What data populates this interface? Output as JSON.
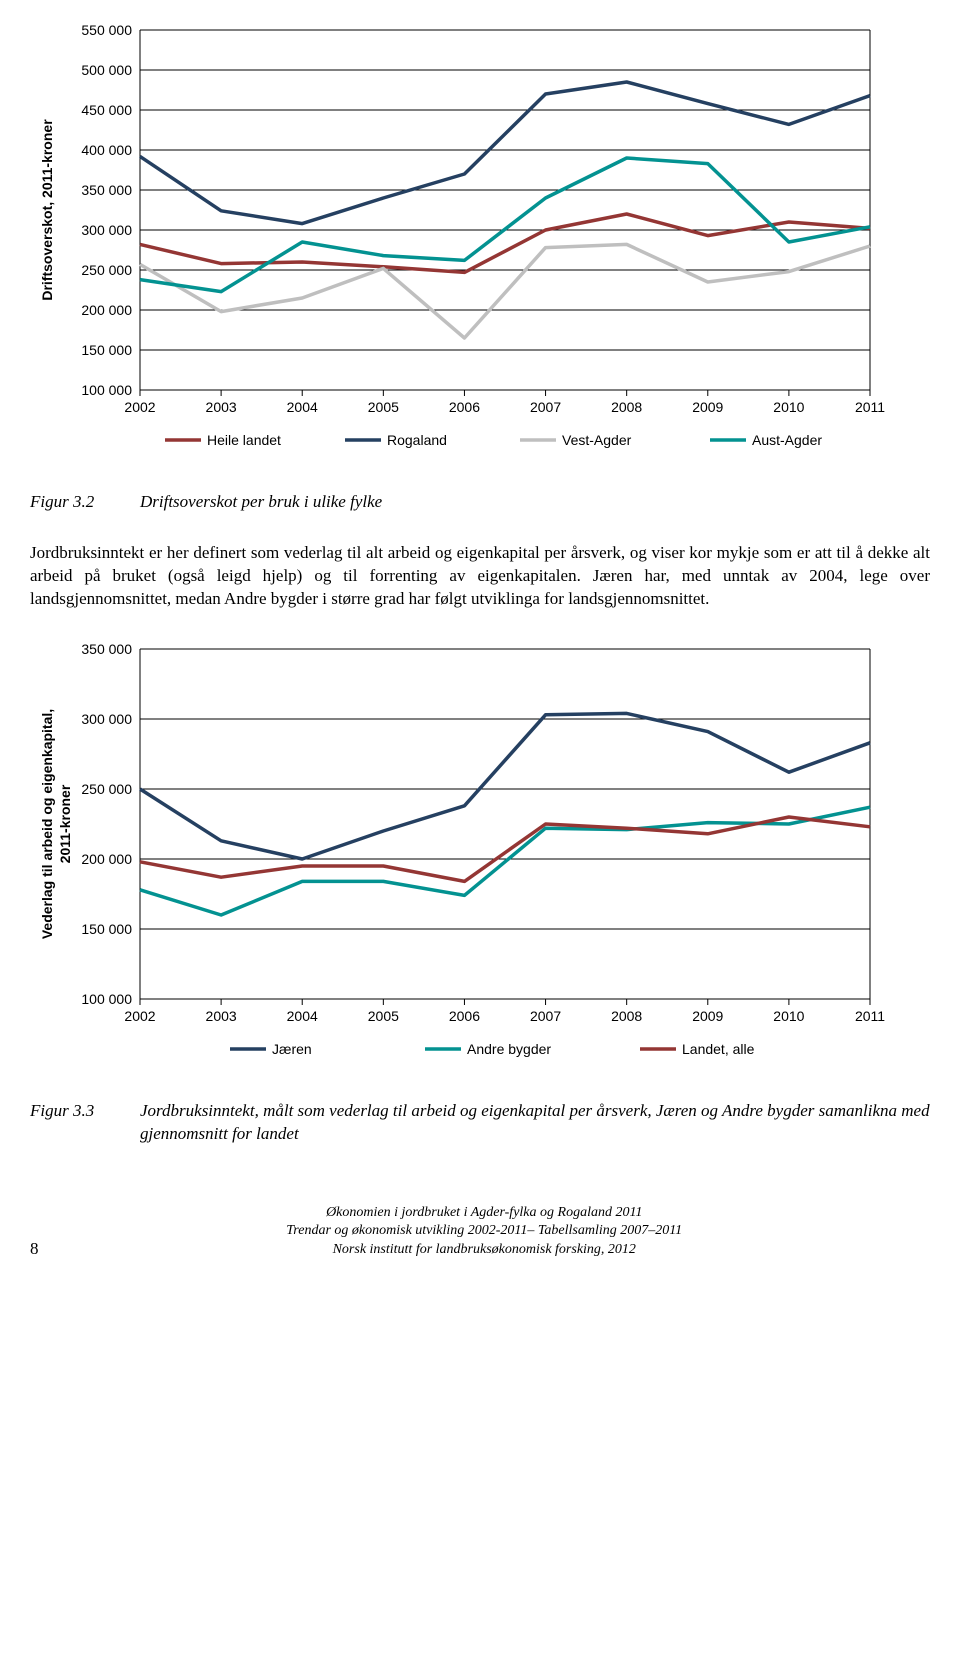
{
  "chart1": {
    "type": "line",
    "ylabel": "Driftsoverskot, 2011-kroner",
    "ylabel_fontsize": 14,
    "xcategories": [
      "2002",
      "2003",
      "2004",
      "2005",
      "2006",
      "2007",
      "2008",
      "2009",
      "2010",
      "2011"
    ],
    "ylim": [
      100000,
      550000
    ],
    "ytick_step": 50000,
    "yticklabels": [
      "100 000",
      "150 000",
      "200 000",
      "250 000",
      "300 000",
      "350 000",
      "400 000",
      "450 000",
      "500 000",
      "550 000"
    ],
    "grid_color": "#000000",
    "background_color": "#ffffff",
    "line_width": 3.5,
    "axis_fontsize": 14,
    "legend_fontsize": 14,
    "series": [
      {
        "name": "Heile landet",
        "color": "#943634",
        "values": [
          282000,
          258000,
          260000,
          254000,
          247000,
          300000,
          320000,
          293000,
          310000,
          302000
        ]
      },
      {
        "name": "Rogaland",
        "color": "#254061",
        "values": [
          392000,
          324000,
          308000,
          340000,
          370000,
          470000,
          485000,
          458000,
          432000,
          468000
        ]
      },
      {
        "name": "Vest-Agder",
        "color": "#bfbfbf",
        "values": [
          257000,
          198000,
          215000,
          252000,
          165000,
          278000,
          282000,
          235000,
          248000,
          280000
        ]
      },
      {
        "name": "Aust-Agder",
        "color": "#039291",
        "values": [
          238000,
          223000,
          285000,
          268000,
          262000,
          340000,
          390000,
          383000,
          285000,
          304000
        ]
      }
    ]
  },
  "figcap1": {
    "label": "Figur 3.2",
    "text": "Driftsoverskot per bruk i ulike fylke"
  },
  "paragraph": "Jordbruksinntekt er her definert som vederlag til alt arbeid og eigenkapital per årsverk, og viser kor mykje som er att til å dekke alt arbeid på bruket (også leigd hjelp) og til forrenting av eigenkapitalen. Jæren har, med unntak av 2004, lege over landsgjennomsnittet, medan Andre bygder i større grad har følgt utviklinga for landsgjennomsnittet.",
  "chart2": {
    "type": "line",
    "ylabel": "Vederlag til arbeid og eigenkapital,\n2011-kroner",
    "ylabel_fontsize": 14,
    "xcategories": [
      "2002",
      "2003",
      "2004",
      "2005",
      "2006",
      "2007",
      "2008",
      "2009",
      "2010",
      "2011"
    ],
    "ylim": [
      100000,
      350000
    ],
    "ytick_step": 50000,
    "yticklabels": [
      "100 000",
      "150 000",
      "200 000",
      "250 000",
      "300 000",
      "350 000"
    ],
    "grid_color": "#000000",
    "background_color": "#ffffff",
    "line_width": 3.5,
    "axis_fontsize": 14,
    "legend_fontsize": 14,
    "series": [
      {
        "name": "Jæren",
        "color": "#254061",
        "values": [
          250000,
          213000,
          200000,
          220000,
          238000,
          303000,
          304000,
          291000,
          262000,
          283000
        ]
      },
      {
        "name": "Andre bygder",
        "color": "#039291",
        "values": [
          178000,
          160000,
          184000,
          184000,
          174000,
          222000,
          221000,
          226000,
          225000,
          237000
        ]
      },
      {
        "name": "Landet, alle",
        "color": "#943634",
        "values": [
          198000,
          187000,
          195000,
          195000,
          184000,
          225000,
          222000,
          218000,
          230000,
          223000
        ]
      }
    ]
  },
  "figcap2": {
    "label": "Figur 3.3",
    "text": "Jordbruksinntekt, målt som vederlag til arbeid og eigenkapital per årsverk, Jæren og Andre bygder samanlikna med gjennomsnitt for landet"
  },
  "page_number": "8",
  "footer": {
    "line1": "Økonomien i jordbruket i Agder-fylka og Rogaland 2011",
    "line2": "Trendar og økonomisk utvikling 2002-2011– Tabellsamling 2007–2011",
    "line3": "Norsk institutt for landbruksøkonomisk forsking, 2012"
  }
}
